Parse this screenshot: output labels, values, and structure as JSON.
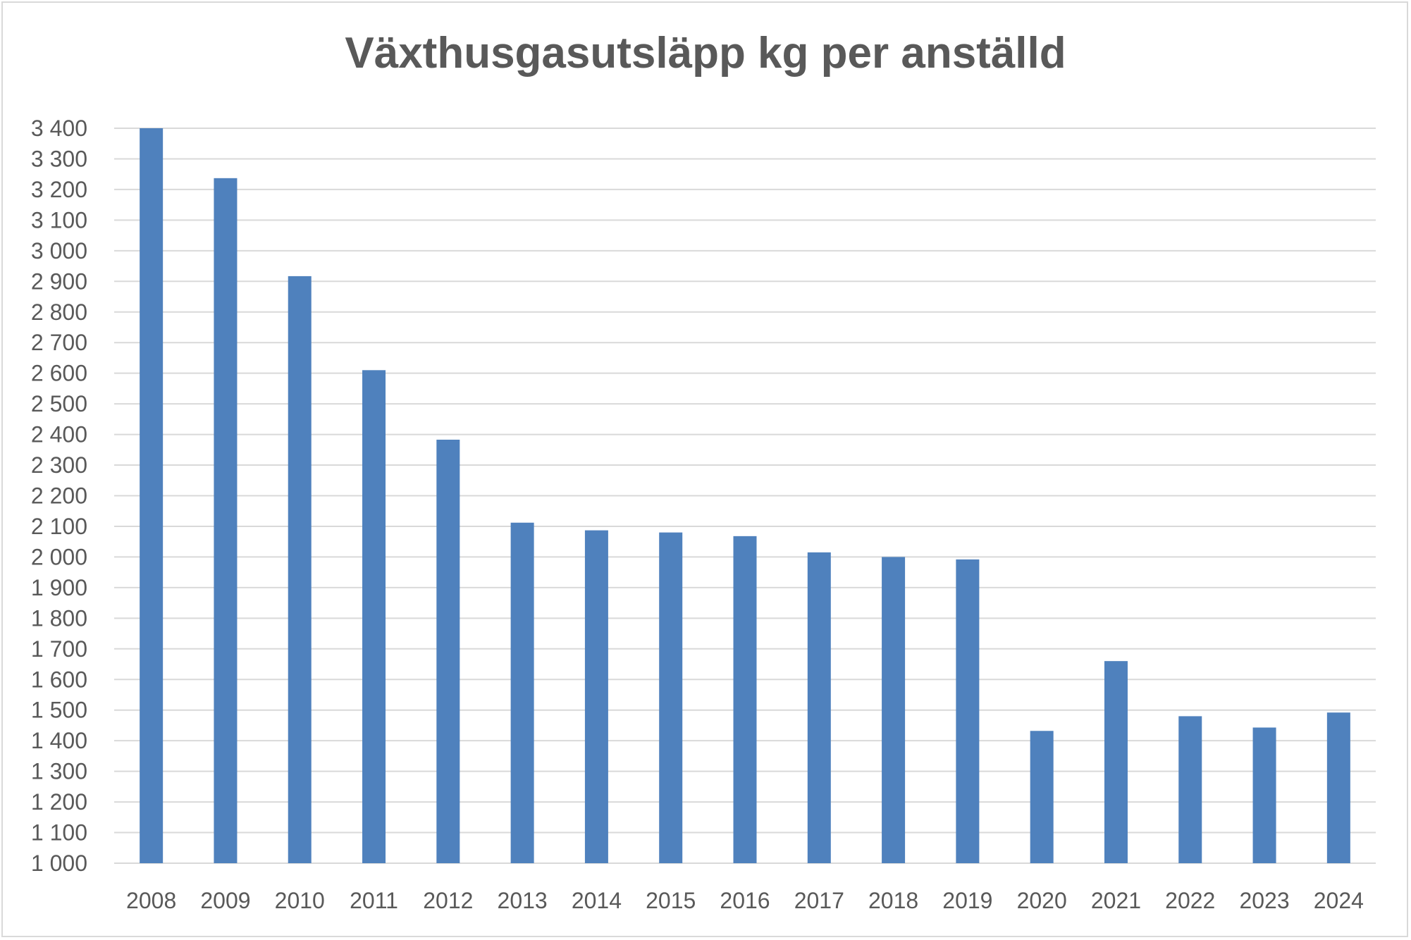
{
  "chart_data": {
    "type": "bar",
    "title": "Växthusgasutsläpp kg per anställd",
    "xlabel": "",
    "ylabel": "",
    "categories": [
      "2008",
      "2009",
      "2010",
      "2011",
      "2012",
      "2013",
      "2014",
      "2015",
      "2016",
      "2017",
      "2018",
      "2019",
      "2020",
      "2021",
      "2022",
      "2023",
      "2024"
    ],
    "values": [
      3400,
      3237,
      2917,
      2610,
      2383,
      2112,
      2087,
      2080,
      2068,
      2015,
      2000,
      1992,
      1432,
      1660,
      1480,
      1443,
      1492
    ],
    "ylim": [
      1000,
      3400
    ],
    "yticks": [
      1000,
      1100,
      1200,
      1300,
      1400,
      1500,
      1600,
      1700,
      1800,
      1900,
      2000,
      2100,
      2200,
      2300,
      2400,
      2500,
      2600,
      2700,
      2800,
      2900,
      3000,
      3100,
      3200,
      3300,
      3400
    ],
    "ytick_labels": [
      "1 000",
      "1 100",
      "1 200",
      "1 300",
      "1 400",
      "1 500",
      "1 600",
      "1 700",
      "1 800",
      "1 900",
      "2 000",
      "2 100",
      "2 200",
      "2 300",
      "2 400",
      "2 500",
      "2 600",
      "2 700",
      "2 800",
      "2 900",
      "3 000",
      "3 100",
      "3 200",
      "3 300",
      "3 400"
    ],
    "grid": true,
    "legend": "none",
    "bar_color": "#4f81bd",
    "grid_color": "#d9d9d9",
    "text_color": "#595959"
  }
}
